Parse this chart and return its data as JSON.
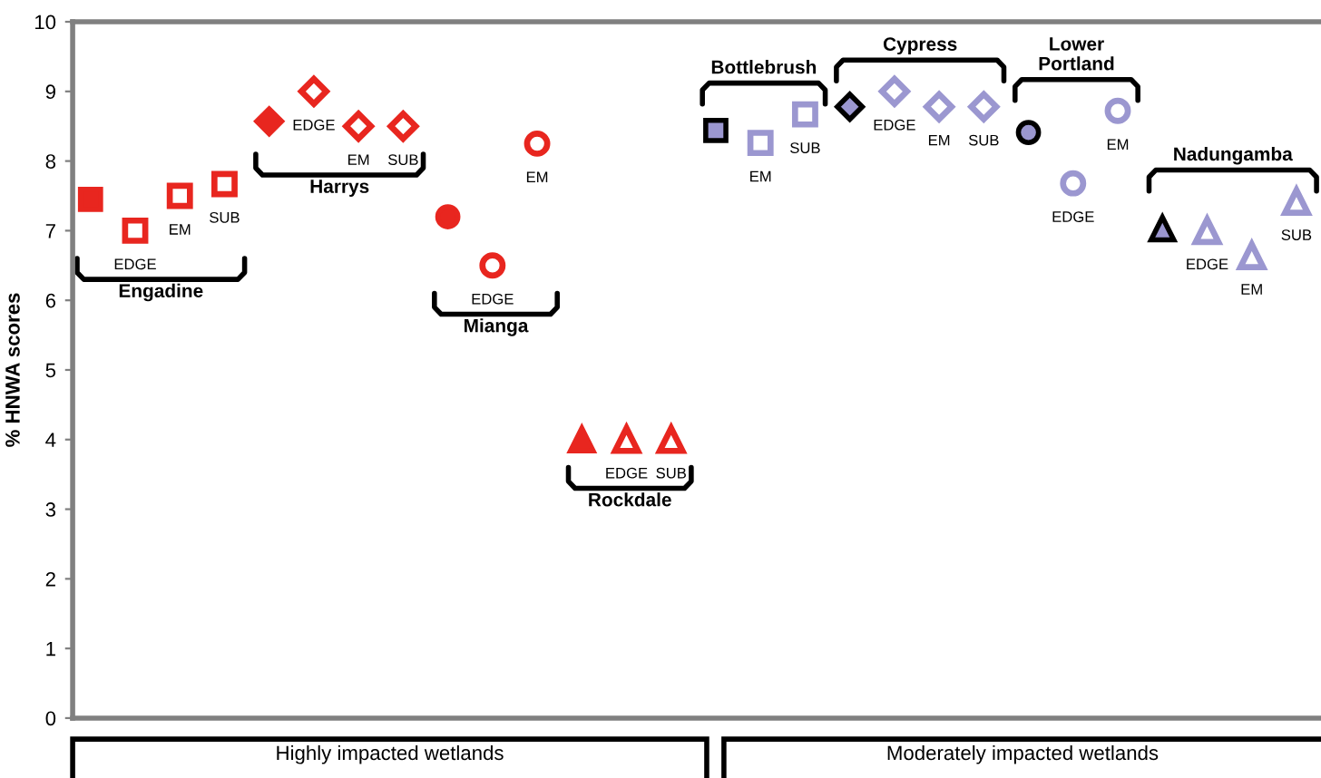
{
  "chart_data": {
    "type": "scatter",
    "ylabel": "% HNWA scores",
    "ylim": [
      0,
      10
    ],
    "yticks": [
      0,
      1,
      2,
      3,
      4,
      5,
      6,
      7,
      8,
      9,
      10
    ],
    "grid": false,
    "legend": false,
    "tick_labels": "y",
    "categories": [
      null,
      null,
      null,
      null,
      null,
      null,
      null,
      null,
      null,
      null,
      null,
      null,
      null,
      null,
      null,
      null,
      null,
      null,
      null,
      null,
      null,
      null,
      null,
      null,
      null,
      null,
      null,
      null
    ],
    "series": [
      {
        "name": "Engadine",
        "color": "#e8261f",
        "marker": "square",
        "colors": [
          "#e8261f",
          "#e8261f",
          "#e8261f",
          "#e8261f",
          null,
          null,
          null,
          null,
          null,
          null,
          null,
          null,
          null,
          null,
          null,
          null,
          null,
          null,
          null,
          null,
          null,
          null,
          null,
          null,
          null,
          null,
          null,
          null
        ],
        "values": [
          7.45,
          7.0,
          7.5,
          7.67,
          null,
          null,
          null,
          null,
          null,
          null,
          null,
          null,
          null,
          null,
          null,
          null,
          null,
          null,
          null,
          null,
          null,
          null,
          null,
          null,
          null,
          null,
          null,
          null
        ],
        "value_labels": [
          null,
          "EDGE",
          "EM",
          "SUB",
          null,
          null,
          null,
          null,
          null,
          null,
          null,
          null,
          null,
          null,
          null,
          null,
          null,
          null,
          null,
          null,
          null,
          null,
          null,
          null,
          null,
          null,
          null,
          null
        ]
      },
      {
        "name": "Harrys",
        "color": "#e8261f",
        "marker": "diamond",
        "colors": [
          null,
          null,
          null,
          null,
          "#e8261f",
          "#e8261f",
          "#e8261f",
          "#e8261f",
          null,
          null,
          null,
          null,
          null,
          null,
          null,
          null,
          null,
          null,
          null,
          null,
          null,
          null,
          null,
          null,
          null,
          null,
          null,
          null
        ],
        "values": [
          null,
          null,
          null,
          null,
          8.57,
          9.0,
          8.5,
          8.5,
          null,
          null,
          null,
          null,
          null,
          null,
          null,
          null,
          null,
          null,
          null,
          null,
          null,
          null,
          null,
          null,
          null,
          null,
          null,
          null
        ],
        "value_labels": [
          null,
          null,
          null,
          null,
          null,
          "EDGE",
          "EM",
          "SUB",
          null,
          null,
          null,
          null,
          null,
          null,
          null,
          null,
          null,
          null,
          null,
          null,
          null,
          null,
          null,
          null,
          null,
          null,
          null,
          null
        ]
      },
      {
        "name": "Mianga",
        "color": "#e8261f",
        "marker": "circle",
        "colors": [
          null,
          null,
          null,
          null,
          null,
          null,
          null,
          null,
          "#e8261f",
          "#e8261f",
          "#e8261f",
          null,
          null,
          null,
          null,
          null,
          null,
          null,
          null,
          null,
          null,
          null,
          null,
          null,
          null,
          null,
          null,
          null
        ],
        "values": [
          null,
          null,
          null,
          null,
          null,
          null,
          null,
          null,
          7.2,
          6.5,
          8.25,
          null,
          null,
          null,
          null,
          null,
          null,
          null,
          null,
          null,
          null,
          null,
          null,
          null,
          null,
          null,
          null,
          null
        ],
        "value_labels": [
          null,
          null,
          null,
          null,
          null,
          null,
          null,
          null,
          null,
          "EDGE",
          "EM",
          null,
          null,
          null,
          null,
          null,
          null,
          null,
          null,
          null,
          null,
          null,
          null,
          null,
          null,
          null,
          null,
          null
        ]
      },
      {
        "name": "Rockdale",
        "color": "#e8261f",
        "marker": "triangle",
        "colors": [
          null,
          null,
          null,
          null,
          null,
          null,
          null,
          null,
          null,
          null,
          null,
          "#e8261f",
          "#e8261f",
          "#e8261f",
          null,
          null,
          null,
          null,
          null,
          null,
          null,
          null,
          null,
          null,
          null,
          null,
          null,
          null
        ],
        "values": [
          null,
          null,
          null,
          null,
          null,
          null,
          null,
          null,
          null,
          null,
          null,
          4.0,
          4.0,
          4.0,
          null,
          null,
          null,
          null,
          null,
          null,
          null,
          null,
          null,
          null,
          null,
          null,
          null,
          null
        ],
        "value_labels": [
          null,
          null,
          null,
          null,
          null,
          null,
          null,
          null,
          null,
          null,
          null,
          null,
          "EDGE",
          "SUB",
          null,
          null,
          null,
          null,
          null,
          null,
          null,
          null,
          null,
          null,
          null,
          null,
          null,
          null
        ]
      },
      {
        "name": "Bottlebrush",
        "color": "#9b97d0",
        "marker": "square",
        "colors": [
          null,
          null,
          null,
          null,
          null,
          null,
          null,
          null,
          null,
          null,
          null,
          null,
          null,
          null,
          "#000000",
          "#9b97d0",
          "#9b97d0",
          null,
          null,
          null,
          null,
          null,
          null,
          null,
          null,
          null,
          null,
          null
        ],
        "values": [
          null,
          null,
          null,
          null,
          null,
          null,
          null,
          null,
          null,
          null,
          null,
          null,
          null,
          null,
          8.44,
          8.26,
          8.67,
          null,
          null,
          null,
          null,
          null,
          null,
          null,
          null,
          null,
          null,
          null
        ],
        "value_labels": [
          null,
          null,
          null,
          null,
          null,
          null,
          null,
          null,
          null,
          null,
          null,
          null,
          null,
          null,
          null,
          "EM",
          "SUB",
          null,
          null,
          null,
          null,
          null,
          null,
          null,
          null,
          null,
          null,
          null
        ]
      },
      {
        "name": "Cypress",
        "color": "#9b97d0",
        "marker": "diamond",
        "colors": [
          null,
          null,
          null,
          null,
          null,
          null,
          null,
          null,
          null,
          null,
          null,
          null,
          null,
          null,
          null,
          null,
          null,
          "#000000",
          "#9b97d0",
          "#9b97d0",
          "#9b97d0",
          null,
          null,
          null,
          null,
          null,
          null,
          null
        ],
        "values": [
          null,
          null,
          null,
          null,
          null,
          null,
          null,
          null,
          null,
          null,
          null,
          null,
          null,
          null,
          null,
          null,
          null,
          8.78,
          9.0,
          8.78,
          8.78,
          null,
          null,
          null,
          null,
          null,
          null,
          null
        ],
        "value_labels": [
          null,
          null,
          null,
          null,
          null,
          null,
          null,
          null,
          null,
          null,
          null,
          null,
          null,
          null,
          null,
          null,
          null,
          null,
          "EDGE",
          "EM",
          "SUB",
          null,
          null,
          null,
          null,
          null,
          null,
          null
        ]
      },
      {
        "name": "Lower\nPortland",
        "color": "#9b97d0",
        "marker": "circle",
        "colors": [
          null,
          null,
          null,
          null,
          null,
          null,
          null,
          null,
          null,
          null,
          null,
          null,
          null,
          null,
          null,
          null,
          null,
          null,
          null,
          null,
          null,
          "#000000",
          "#9b97d0",
          "#9b97d0",
          null,
          null,
          null,
          null
        ],
        "values": [
          null,
          null,
          null,
          null,
          null,
          null,
          null,
          null,
          null,
          null,
          null,
          null,
          null,
          null,
          null,
          null,
          null,
          null,
          null,
          null,
          null,
          8.41,
          7.68,
          8.72,
          null,
          null,
          null,
          null
        ],
        "value_labels": [
          null,
          null,
          null,
          null,
          null,
          null,
          null,
          null,
          null,
          null,
          null,
          null,
          null,
          null,
          null,
          null,
          null,
          null,
          null,
          null,
          null,
          null,
          "EDGE",
          "EM",
          null,
          null,
          null,
          null
        ]
      },
      {
        "name": "Nadungamba",
        "color": "#9b97d0",
        "marker": "triangle",
        "colors": [
          null,
          null,
          null,
          null,
          null,
          null,
          null,
          null,
          null,
          null,
          null,
          null,
          null,
          null,
          null,
          null,
          null,
          null,
          null,
          null,
          null,
          null,
          null,
          null,
          "#000000",
          "#9b97d0",
          "#9b97d0",
          "#9b97d0"
        ],
        "values": [
          null,
          null,
          null,
          null,
          null,
          null,
          null,
          null,
          null,
          null,
          null,
          null,
          null,
          null,
          null,
          null,
          null,
          null,
          null,
          null,
          null,
          null,
          null,
          null,
          7.03,
          7.0,
          6.64,
          7.42
        ],
        "value_labels": [
          null,
          null,
          null,
          null,
          null,
          null,
          null,
          null,
          null,
          null,
          null,
          null,
          null,
          null,
          null,
          null,
          null,
          null,
          null,
          null,
          null,
          null,
          null,
          null,
          null,
          "EDGE",
          "EM",
          "SUB"
        ]
      }
    ],
    "annotations": [
      "Highly impacted wetlands",
      "Moderately impacted wetlands"
    ]
  }
}
